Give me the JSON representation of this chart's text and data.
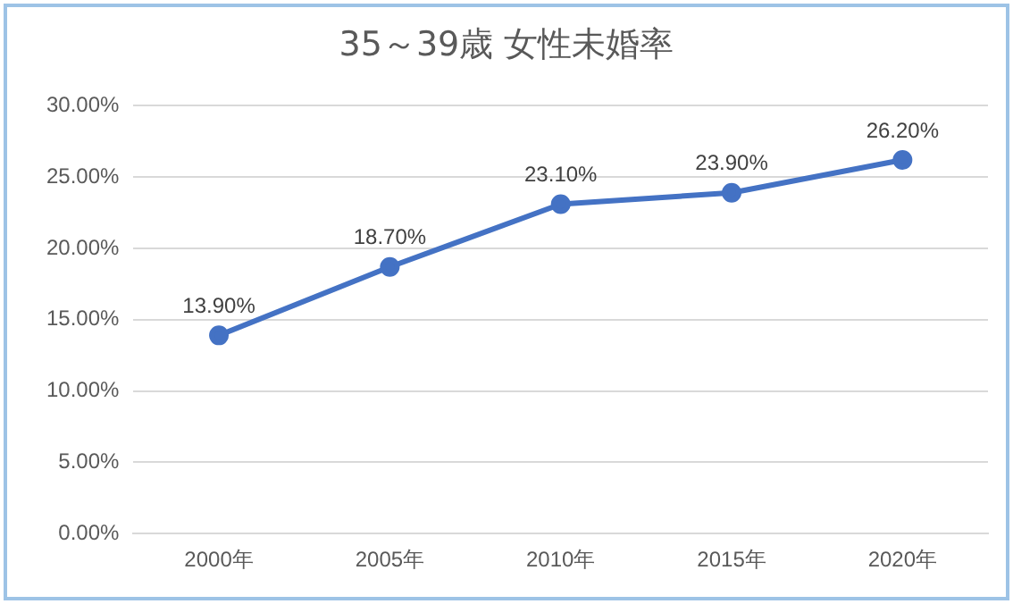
{
  "chart_data": {
    "type": "line",
    "title": "35～39歳 女性未婚率",
    "categories": [
      "2000年",
      "2005年",
      "2010年",
      "2015年",
      "2020年"
    ],
    "series": [
      {
        "color": "#4472c4",
        "values": [
          13.9,
          18.7,
          23.1,
          23.9,
          26.2
        ],
        "value_labels": [
          "13.90%",
          "18.70%",
          "23.10%",
          "23.90%",
          "26.20%"
        ]
      }
    ],
    "ylim": [
      0,
      30
    ],
    "yticks": [
      {
        "value": 0,
        "label": "0.00%"
      },
      {
        "value": 5,
        "label": "5.00%"
      },
      {
        "value": 10,
        "label": "10.00%"
      },
      {
        "value": 15,
        "label": "15.00%"
      },
      {
        "value": 20,
        "label": "20.00%"
      },
      {
        "value": 25,
        "label": "25.00%"
      },
      {
        "value": 30,
        "label": "30.00%"
      }
    ],
    "grid": "y",
    "legend": false,
    "marker": "circle",
    "line_style": "solid"
  }
}
